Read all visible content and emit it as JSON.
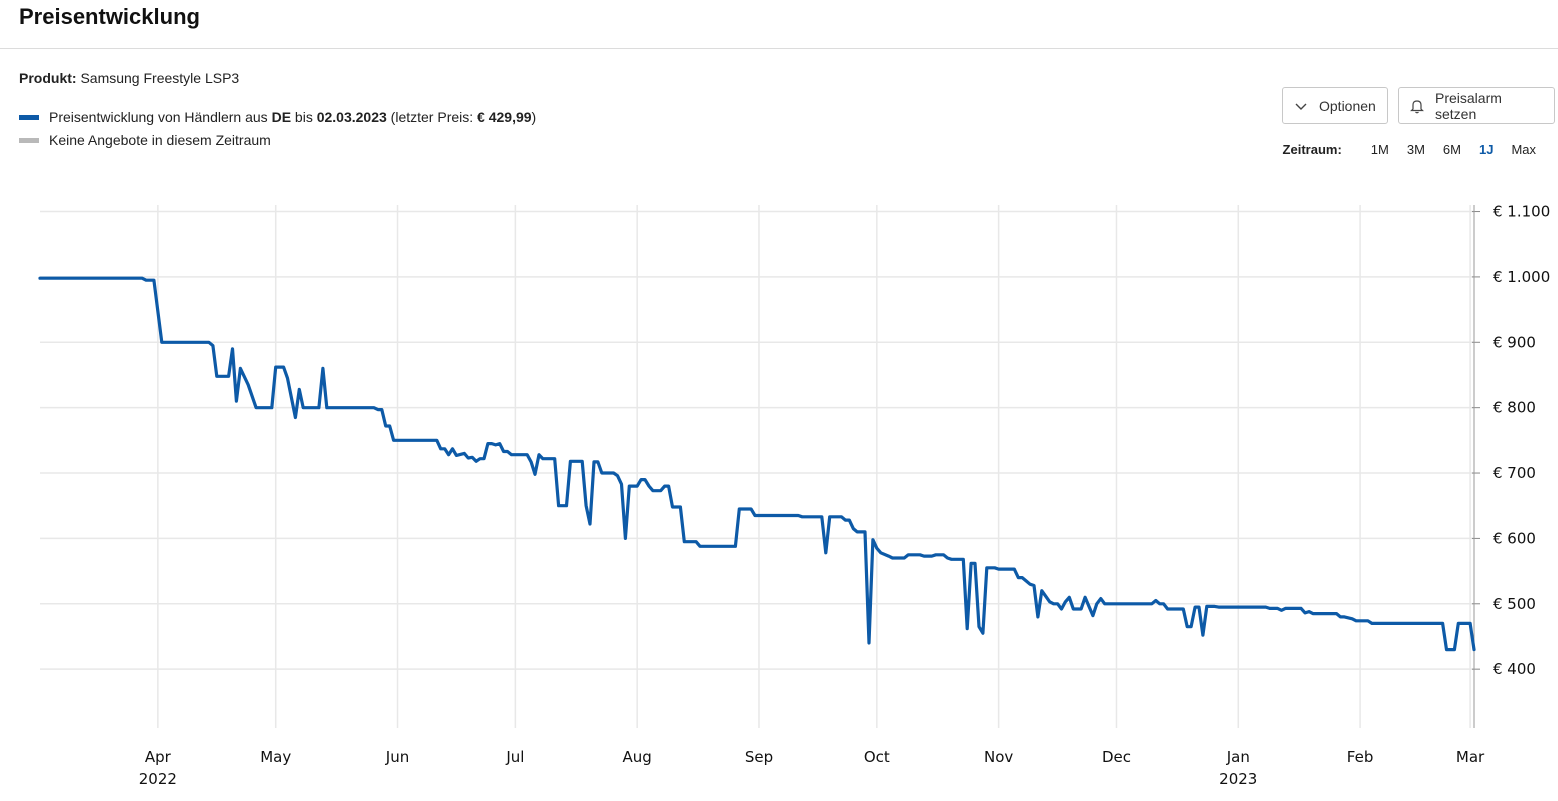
{
  "header": {
    "title": "Preisentwicklung"
  },
  "product": {
    "label": "Produkt:",
    "name": "Samsung Freestyle LSP3"
  },
  "legend": {
    "series_prefix": "Preisentwicklung von Händlern aus ",
    "series_country": "DE",
    "series_mid": " bis ",
    "series_date": "02.03.2023",
    "series_lastprice_prefix": " (letzter Preis: ",
    "series_lastprice": "€ 429,99",
    "series_suffix": ")",
    "no_offers": "Keine Angebote in diesem Zeitraum"
  },
  "toolbar": {
    "options_label": "Optionen",
    "alarm_label": "Preisalarm setzen"
  },
  "range": {
    "label": "Zeitraum:",
    "options": [
      "1M",
      "3M",
      "6M",
      "1J",
      "Max"
    ],
    "active": "1J"
  },
  "colors": {
    "line": "#0d5aa7",
    "no_offers": "#b9b9b9",
    "grid": "#e8e8e8",
    "active": "#0d5aa7"
  },
  "icons": {
    "options": "chevron-down-icon",
    "alarm": "bell-icon"
  },
  "chart_data": {
    "type": "line",
    "y_ticks": [
      {
        "value": 1100,
        "label": "€ 1.100"
      },
      {
        "value": 1000,
        "label": "€ 1.000"
      },
      {
        "value": 900,
        "label": "€ 900"
      },
      {
        "value": 800,
        "label": "€ 800"
      },
      {
        "value": 700,
        "label": "€ 700"
      },
      {
        "value": 600,
        "label": "€ 600"
      },
      {
        "value": 500,
        "label": "€ 500"
      },
      {
        "value": 400,
        "label": "€ 400"
      }
    ],
    "x_ticks": [
      {
        "date": "2022-04-01",
        "label": "Apr",
        "sublabel": "2022"
      },
      {
        "date": "2022-05-01",
        "label": "May"
      },
      {
        "date": "2022-06-01",
        "label": "Jun"
      },
      {
        "date": "2022-07-01",
        "label": "Jul"
      },
      {
        "date": "2022-08-01",
        "label": "Aug"
      },
      {
        "date": "2022-09-01",
        "label": "Sep"
      },
      {
        "date": "2022-10-01",
        "label": "Oct"
      },
      {
        "date": "2022-11-01",
        "label": "Nov"
      },
      {
        "date": "2022-12-01",
        "label": "Dec"
      },
      {
        "date": "2023-01-01",
        "label": "Jan",
        "sublabel": "2023"
      },
      {
        "date": "2023-02-01",
        "label": "Feb"
      },
      {
        "date": "2023-03-01",
        "label": "Mar"
      }
    ],
    "x_range": [
      "2022-03-02",
      "2023-03-02"
    ],
    "ylim": [
      310,
      1110
    ],
    "grid": true,
    "series": [
      {
        "color": "#0d5aa7",
        "points": [
          [
            "2022-03-02",
            998
          ],
          [
            "2022-03-28",
            998
          ],
          [
            "2022-03-29",
            995
          ],
          [
            "2022-03-31",
            995
          ],
          [
            "2022-04-02",
            900
          ],
          [
            "2022-04-14",
            900
          ],
          [
            "2022-04-15",
            895
          ],
          [
            "2022-04-16",
            848
          ],
          [
            "2022-04-19",
            848
          ],
          [
            "2022-04-20",
            890
          ],
          [
            "2022-04-21",
            810
          ],
          [
            "2022-04-22",
            860
          ],
          [
            "2022-04-24",
            835
          ],
          [
            "2022-04-26",
            800
          ],
          [
            "2022-04-30",
            800
          ],
          [
            "2022-05-01",
            862
          ],
          [
            "2022-05-03",
            862
          ],
          [
            "2022-05-04",
            845
          ],
          [
            "2022-05-06",
            785
          ],
          [
            "2022-05-07",
            828
          ],
          [
            "2022-05-08",
            800
          ],
          [
            "2022-05-12",
            800
          ],
          [
            "2022-05-13",
            860
          ],
          [
            "2022-05-14",
            800
          ],
          [
            "2022-05-26",
            800
          ],
          [
            "2022-05-27",
            797
          ],
          [
            "2022-05-28",
            797
          ],
          [
            "2022-05-29",
            772
          ],
          [
            "2022-05-30",
            772
          ],
          [
            "2022-05-31",
            750
          ],
          [
            "2022-06-11",
            750
          ],
          [
            "2022-06-12",
            737
          ],
          [
            "2022-06-13",
            737
          ],
          [
            "2022-06-14",
            728
          ],
          [
            "2022-06-15",
            737
          ],
          [
            "2022-06-16",
            727
          ],
          [
            "2022-06-18",
            730
          ],
          [
            "2022-06-19",
            723
          ],
          [
            "2022-06-20",
            724
          ],
          [
            "2022-06-21",
            718
          ],
          [
            "2022-06-22",
            722
          ],
          [
            "2022-06-23",
            722
          ],
          [
            "2022-06-24",
            745
          ],
          [
            "2022-06-25",
            745
          ],
          [
            "2022-06-26",
            743
          ],
          [
            "2022-06-27",
            745
          ],
          [
            "2022-06-28",
            733
          ],
          [
            "2022-06-29",
            733
          ],
          [
            "2022-06-30",
            728
          ],
          [
            "2022-07-04",
            728
          ],
          [
            "2022-07-05",
            717
          ],
          [
            "2022-07-06",
            698
          ],
          [
            "2022-07-07",
            728
          ],
          [
            "2022-07-08",
            722
          ],
          [
            "2022-07-11",
            722
          ],
          [
            "2022-07-12",
            650
          ],
          [
            "2022-07-14",
            650
          ],
          [
            "2022-07-15",
            718
          ],
          [
            "2022-07-18",
            718
          ],
          [
            "2022-07-19",
            650
          ],
          [
            "2022-07-20",
            622
          ],
          [
            "2022-07-21",
            717
          ],
          [
            "2022-07-22",
            717
          ],
          [
            "2022-07-23",
            700
          ],
          [
            "2022-07-26",
            700
          ],
          [
            "2022-07-27",
            696
          ],
          [
            "2022-07-28",
            683
          ],
          [
            "2022-07-29",
            600
          ],
          [
            "2022-07-30",
            680
          ],
          [
            "2022-08-01",
            680
          ],
          [
            "2022-08-02",
            690
          ],
          [
            "2022-08-03",
            690
          ],
          [
            "2022-08-04",
            680
          ],
          [
            "2022-08-05",
            673
          ],
          [
            "2022-08-07",
            673
          ],
          [
            "2022-08-08",
            680
          ],
          [
            "2022-08-09",
            680
          ],
          [
            "2022-08-10",
            648
          ],
          [
            "2022-08-12",
            648
          ],
          [
            "2022-08-13",
            595
          ],
          [
            "2022-08-16",
            595
          ],
          [
            "2022-08-17",
            588
          ],
          [
            "2022-08-26",
            588
          ],
          [
            "2022-08-27",
            645
          ],
          [
            "2022-08-30",
            645
          ],
          [
            "2022-08-31",
            635
          ],
          [
            "2022-09-11",
            635
          ],
          [
            "2022-09-12",
            633
          ],
          [
            "2022-09-17",
            633
          ],
          [
            "2022-09-18",
            578
          ],
          [
            "2022-09-19",
            633
          ],
          [
            "2022-09-22",
            633
          ],
          [
            "2022-09-23",
            628
          ],
          [
            "2022-09-24",
            628
          ],
          [
            "2022-09-25",
            615
          ],
          [
            "2022-09-26",
            610
          ],
          [
            "2022-09-28",
            610
          ],
          [
            "2022-09-29",
            440
          ],
          [
            "2022-09-30",
            598
          ],
          [
            "2022-10-01",
            585
          ],
          [
            "2022-10-02",
            578
          ],
          [
            "2022-10-04",
            573
          ],
          [
            "2022-10-05",
            570
          ],
          [
            "2022-10-08",
            570
          ],
          [
            "2022-10-09",
            575
          ],
          [
            "2022-10-12",
            575
          ],
          [
            "2022-10-13",
            573
          ],
          [
            "2022-10-15",
            573
          ],
          [
            "2022-10-16",
            575
          ],
          [
            "2022-10-18",
            575
          ],
          [
            "2022-10-19",
            570
          ],
          [
            "2022-10-20",
            568
          ],
          [
            "2022-10-23",
            568
          ],
          [
            "2022-10-24",
            462
          ],
          [
            "2022-10-25",
            562
          ],
          [
            "2022-10-26",
            562
          ],
          [
            "2022-10-27",
            465
          ],
          [
            "2022-10-28",
            455
          ],
          [
            "2022-10-29",
            555
          ],
          [
            "2022-10-31",
            555
          ],
          [
            "2022-11-01",
            553
          ],
          [
            "2022-11-05",
            553
          ],
          [
            "2022-11-06",
            540
          ],
          [
            "2022-11-07",
            540
          ],
          [
            "2022-11-08",
            535
          ],
          [
            "2022-11-09",
            530
          ],
          [
            "2022-11-10",
            528
          ],
          [
            "2022-11-11",
            480
          ],
          [
            "2022-11-12",
            520
          ],
          [
            "2022-11-14",
            503
          ],
          [
            "2022-11-15",
            500
          ],
          [
            "2022-11-16",
            500
          ],
          [
            "2022-11-17",
            492
          ],
          [
            "2022-11-18",
            503
          ],
          [
            "2022-11-19",
            510
          ],
          [
            "2022-11-20",
            492
          ],
          [
            "2022-11-22",
            492
          ],
          [
            "2022-11-23",
            510
          ],
          [
            "2022-11-25",
            482
          ],
          [
            "2022-11-26",
            500
          ],
          [
            "2022-11-27",
            508
          ],
          [
            "2022-11-28",
            500
          ],
          [
            "2022-12-10",
            500
          ],
          [
            "2022-12-11",
            505
          ],
          [
            "2022-12-12",
            500
          ],
          [
            "2022-12-13",
            500
          ],
          [
            "2022-12-14",
            492
          ],
          [
            "2022-12-18",
            492
          ],
          [
            "2022-12-19",
            465
          ],
          [
            "2022-12-20",
            465
          ],
          [
            "2022-12-21",
            495
          ],
          [
            "2022-12-22",
            495
          ],
          [
            "2022-12-23",
            452
          ],
          [
            "2022-12-24",
            496
          ],
          [
            "2022-12-26",
            496
          ],
          [
            "2022-12-27",
            495
          ],
          [
            "2023-01-08",
            495
          ],
          [
            "2023-01-09",
            493
          ],
          [
            "2023-01-11",
            493
          ],
          [
            "2023-01-12",
            490
          ],
          [
            "2023-01-13",
            493
          ],
          [
            "2023-01-17",
            493
          ],
          [
            "2023-01-18",
            486
          ],
          [
            "2023-01-19",
            488
          ],
          [
            "2023-01-20",
            485
          ],
          [
            "2023-01-26",
            485
          ],
          [
            "2023-01-27",
            480
          ],
          [
            "2023-01-28",
            480
          ],
          [
            "2023-01-30",
            477
          ],
          [
            "2023-01-31",
            474
          ],
          [
            "2023-02-03",
            474
          ],
          [
            "2023-02-04",
            470
          ],
          [
            "2023-02-22",
            470
          ],
          [
            "2023-02-23",
            430
          ],
          [
            "2023-02-25",
            430
          ],
          [
            "2023-02-26",
            470
          ],
          [
            "2023-03-01",
            470
          ],
          [
            "2023-03-02",
            430
          ]
        ]
      }
    ]
  }
}
